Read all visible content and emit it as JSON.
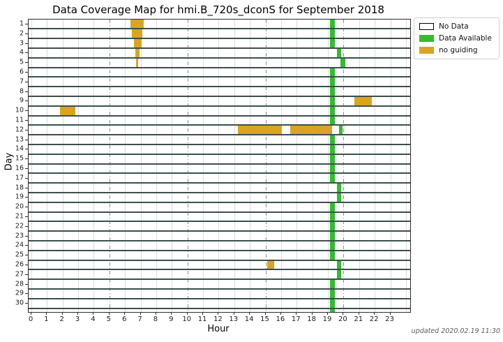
{
  "figure": {
    "title": "Data Coverage Map for hmi.B_720s_dconS for September 2018",
    "footer": "updated 2020.02.19 11:30"
  },
  "legend": {
    "items": [
      {
        "label": "No Data",
        "fill": "#ffffff",
        "edge": "#000000"
      },
      {
        "label": "Data Available",
        "fill": "#2FBE2F",
        "edge": "#2FBE2F"
      },
      {
        "label": "no guiding",
        "fill": "#D9A521",
        "edge": "#D9A521"
      }
    ]
  },
  "chart_data": {
    "type": "heatmap",
    "title": "Data Coverage Map for hmi.B_720s_dconS for September 2018",
    "xlabel": "Hour",
    "ylabel": "Day",
    "x_tick_labels": [
      "0",
      "1",
      "2",
      "3",
      "4",
      "5",
      "6",
      "7",
      "8",
      "9",
      "10",
      "11",
      "12",
      "13",
      "14",
      "15",
      "16",
      "17",
      "18",
      "19",
      "20",
      "21",
      "22",
      "23"
    ],
    "y_tick_labels": [
      "1",
      "2",
      "3",
      "4",
      "5",
      "6",
      "7",
      "8",
      "9",
      "10",
      "11",
      "12",
      "13",
      "14",
      "15",
      "16",
      "17",
      "18",
      "19",
      "20",
      "21",
      "22",
      "23",
      "24",
      "25",
      "26",
      "27",
      "28",
      "29",
      "30"
    ],
    "xlim": [
      -0.2,
      24.25
    ],
    "days": 30,
    "hours": 24,
    "grid": true,
    "major_gridline_hours": [
      5,
      10,
      15,
      20
    ],
    "legend_position": "upper right outside",
    "status_colors": {
      "No Data": "#ffffff",
      "Data Available": "#2FBE2F",
      "no guiding": "#D9A521"
    },
    "segments": [
      {
        "day": 1,
        "start": 6.35,
        "end": 7.2,
        "status": "no guiding"
      },
      {
        "day": 2,
        "start": 6.45,
        "end": 7.1,
        "status": "no guiding"
      },
      {
        "day": 3,
        "start": 6.55,
        "end": 7.05,
        "status": "no guiding"
      },
      {
        "day": 4,
        "start": 6.65,
        "end": 6.95,
        "status": "no guiding"
      },
      {
        "day": 5,
        "start": 6.7,
        "end": 6.85,
        "status": "no guiding"
      },
      {
        "day": 9,
        "start": 20.7,
        "end": 21.8,
        "status": "no guiding"
      },
      {
        "day": 10,
        "start": 1.85,
        "end": 2.8,
        "status": "no guiding"
      },
      {
        "day": 12,
        "start": 13.25,
        "end": 16.05,
        "status": "no guiding"
      },
      {
        "day": 12,
        "start": 16.6,
        "end": 19.25,
        "status": "no guiding"
      },
      {
        "day": 26,
        "start": 15.1,
        "end": 15.55,
        "status": "no guiding"
      },
      {
        "day": 1,
        "start": 19.15,
        "end": 19.45,
        "status": "Data Available"
      },
      {
        "day": 2,
        "start": 19.15,
        "end": 19.45,
        "status": "Data Available"
      },
      {
        "day": 3,
        "start": 19.15,
        "end": 19.45,
        "status": "Data Available"
      },
      {
        "day": 4,
        "start": 19.6,
        "end": 19.85,
        "status": "Data Available"
      },
      {
        "day": 5,
        "start": 19.8,
        "end": 20.1,
        "status": "Data Available"
      },
      {
        "day": 6,
        "start": 19.15,
        "end": 19.45,
        "status": "Data Available"
      },
      {
        "day": 7,
        "start": 19.15,
        "end": 19.45,
        "status": "Data Available"
      },
      {
        "day": 8,
        "start": 19.15,
        "end": 19.45,
        "status": "Data Available"
      },
      {
        "day": 9,
        "start": 19.15,
        "end": 19.45,
        "status": "Data Available"
      },
      {
        "day": 10,
        "start": 19.15,
        "end": 19.45,
        "status": "Data Available"
      },
      {
        "day": 11,
        "start": 19.15,
        "end": 19.45,
        "status": "Data Available"
      },
      {
        "day": 12,
        "start": 19.7,
        "end": 19.95,
        "status": "Data Available"
      },
      {
        "day": 13,
        "start": 19.15,
        "end": 19.45,
        "status": "Data Available"
      },
      {
        "day": 14,
        "start": 19.15,
        "end": 19.45,
        "status": "Data Available"
      },
      {
        "day": 15,
        "start": 19.15,
        "end": 19.45,
        "status": "Data Available"
      },
      {
        "day": 16,
        "start": 19.15,
        "end": 19.45,
        "status": "Data Available"
      },
      {
        "day": 17,
        "start": 19.15,
        "end": 19.45,
        "status": "Data Available"
      },
      {
        "day": 18,
        "start": 19.6,
        "end": 19.85,
        "status": "Data Available"
      },
      {
        "day": 19,
        "start": 19.6,
        "end": 19.85,
        "status": "Data Available"
      },
      {
        "day": 20,
        "start": 19.15,
        "end": 19.45,
        "status": "Data Available"
      },
      {
        "day": 21,
        "start": 19.15,
        "end": 19.45,
        "status": "Data Available"
      },
      {
        "day": 22,
        "start": 19.15,
        "end": 19.45,
        "status": "Data Available"
      },
      {
        "day": 23,
        "start": 19.15,
        "end": 19.45,
        "status": "Data Available"
      },
      {
        "day": 24,
        "start": 19.15,
        "end": 19.45,
        "status": "Data Available"
      },
      {
        "day": 25,
        "start": 19.15,
        "end": 19.45,
        "status": "Data Available"
      },
      {
        "day": 26,
        "start": 19.6,
        "end": 19.85,
        "status": "Data Available"
      },
      {
        "day": 27,
        "start": 19.6,
        "end": 19.85,
        "status": "Data Available"
      },
      {
        "day": 28,
        "start": 19.15,
        "end": 19.45,
        "status": "Data Available"
      },
      {
        "day": 29,
        "start": 19.15,
        "end": 19.45,
        "status": "Data Available"
      },
      {
        "day": 30,
        "start": 19.15,
        "end": 19.45,
        "status": "Data Available"
      }
    ]
  }
}
